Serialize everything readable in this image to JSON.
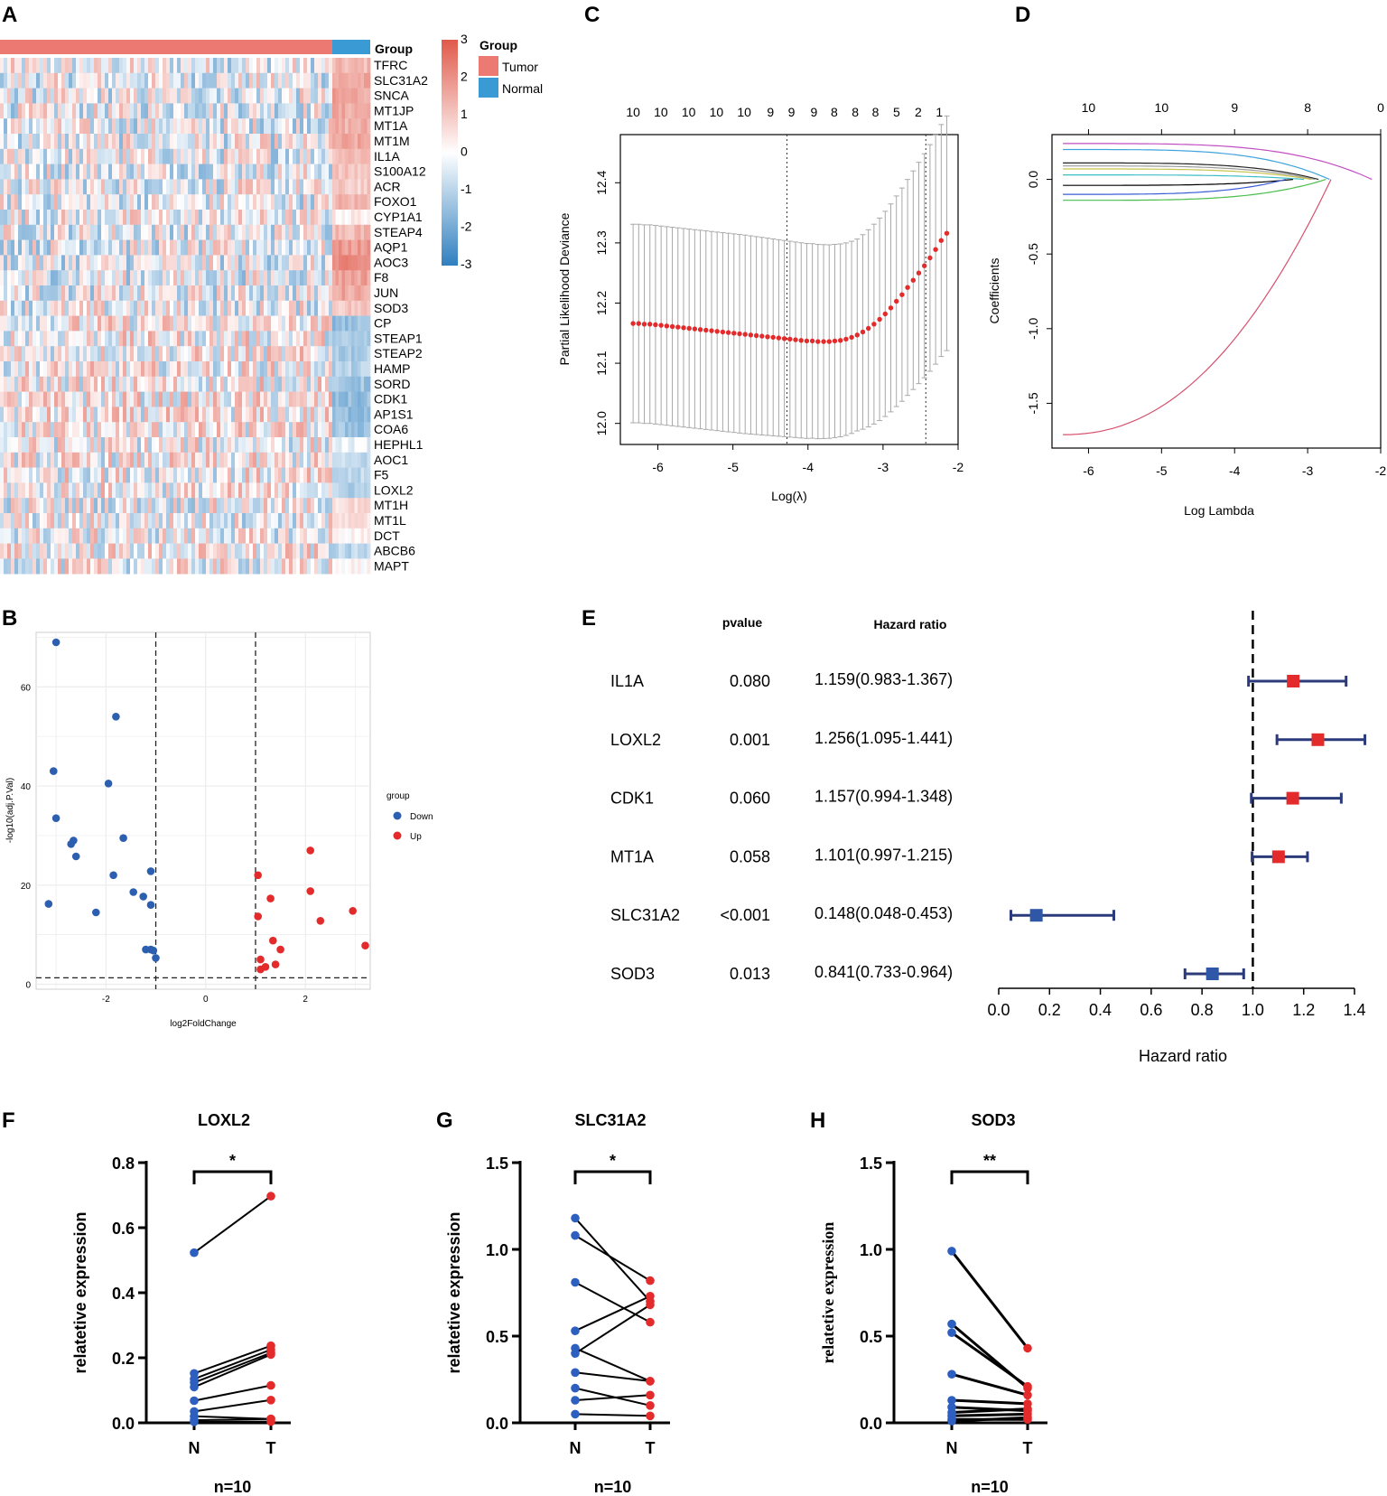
{
  "panels": {
    "A": "A",
    "B": "B",
    "C": "C",
    "D": "D",
    "E": "E",
    "F": "F",
    "G": "G",
    "H": "H"
  },
  "chart_data": [
    {
      "id": "A",
      "type": "heatmap",
      "title": "",
      "annotation_title": "Group",
      "legend_title": "Group",
      "legend": [
        "Tumor",
        "Normal"
      ],
      "colors": {
        "Tumor": "#ec7a72",
        "Normal": "#3a9ad3",
        "high": "#e0594a",
        "mid": "#ffffff",
        "low": "#2f7fbf"
      },
      "scale_ticks": [
        "3",
        "2",
        "1",
        "0",
        "-1",
        "-2",
        "-3"
      ],
      "genes": [
        "TFRC",
        "SLC31A2",
        "SNCA",
        "MT1JP",
        "MT1A",
        "MT1M",
        "IL1A",
        "S100A12",
        "ACR",
        "FOXO1",
        "CYP1A1",
        "STEAP4",
        "AQP1",
        "AOC3",
        "F8",
        "JUN",
        "SOD3",
        "CP",
        "STEAP1",
        "STEAP2",
        "HAMP",
        "SORD",
        "CDK1",
        "AP1S1",
        "COA6",
        "HEPHL1",
        "AOC1",
        "F5",
        "LOXL2",
        "MT1H",
        "MT1L",
        "DCT",
        "ABCB6",
        "MAPT"
      ],
      "normal_block_level": [
        1.2,
        1.5,
        1.6,
        1.5,
        1.4,
        1.5,
        1.3,
        1.0,
        0.9,
        1.3,
        0.3,
        1.3,
        1.8,
        2.0,
        1.7,
        1.6,
        1.0,
        -1.5,
        -1.3,
        -1.2,
        -1.1,
        -1.4,
        -1.6,
        -1.5,
        -1.4,
        -0.3,
        -0.9,
        -1.0,
        -1.1,
        0.6,
        0.5,
        0.2,
        -1.0,
        0.1
      ]
    },
    {
      "id": "B",
      "type": "scatter",
      "title": "",
      "xlabel": "log2FoldChange",
      "ylabel": "-log10(adj.P.Val)",
      "xlim": [
        -3.4,
        3.3
      ],
      "ylim": [
        -1,
        71
      ],
      "xticks": [
        "-2",
        "0",
        "2"
      ],
      "yticks": [
        "0",
        "20",
        "40",
        "60"
      ],
      "thresholds": {
        "x": [
          -1,
          1
        ],
        "y": 1.3
      },
      "legend_title": "group",
      "series": [
        {
          "name": "Down",
          "color": "#2d5fb0",
          "points": [
            [
              -3.0,
              69
            ],
            [
              -1.8,
              54
            ],
            [
              -3.05,
              43
            ],
            [
              -1.95,
              40.5
            ],
            [
              -3.0,
              33.5
            ],
            [
              -2.65,
              29
            ],
            [
              -1.65,
              29.5
            ],
            [
              -2.7,
              28.3
            ],
            [
              -2.6,
              25.8
            ],
            [
              -1.85,
              22
            ],
            [
              -1.1,
              22.8
            ],
            [
              -1.45,
              18.6
            ],
            [
              -1.25,
              17.7
            ],
            [
              -1.1,
              16
            ],
            [
              -3.15,
              16.2
            ],
            [
              -2.2,
              14.5
            ],
            [
              -1.2,
              7
            ],
            [
              -1.1,
              7
            ],
            [
              -1.05,
              6.8
            ],
            [
              -1.0,
              5.3
            ]
          ]
        },
        {
          "name": "Up",
          "color": "#e32b2b",
          "points": [
            [
              1.05,
              22
            ],
            [
              2.1,
              27
            ],
            [
              1.3,
              17.3
            ],
            [
              2.1,
              18.8
            ],
            [
              2.95,
              14.8
            ],
            [
              1.05,
              13.7
            ],
            [
              2.3,
              12.8
            ],
            [
              3.2,
              7.8
            ],
            [
              1.35,
              8.8
            ],
            [
              1.5,
              7
            ],
            [
              1.1,
              5
            ],
            [
              1.4,
              4
            ],
            [
              1.2,
              3.5
            ],
            [
              1.1,
              3
            ]
          ]
        }
      ]
    },
    {
      "id": "C",
      "type": "scatter",
      "title": "",
      "xlabel": "Log(λ)",
      "ylabel": "Partial Likelihood Deviance",
      "xlim": [
        -6.5,
        -2.0
      ],
      "ylim": [
        11.965,
        12.48
      ],
      "xticks": [
        "-6",
        "-5",
        "-4",
        "-3",
        "-2"
      ],
      "yticks": [
        "12.0",
        "12.1",
        "12.2",
        "12.3",
        "12.4"
      ],
      "top_ticks": [
        "10",
        "10",
        "10",
        "10",
        "10",
        "9",
        "9",
        "9",
        "8",
        "8",
        "8",
        "5",
        "2",
        "1"
      ],
      "top_ticks_x": [
        -6.33,
        -5.96,
        -5.59,
        -5.22,
        -4.85,
        -4.5,
        -4.22,
        -3.92,
        -3.65,
        -3.37,
        -3.1,
        -2.82,
        -2.53,
        -2.25
      ],
      "vlines": [
        -4.28,
        -2.43
      ],
      "series": [
        {
          "name": "deviance",
          "color": "#e32b2b",
          "x_start": -6.33,
          "x_end": -2.15,
          "points_note": "mean partial likelihood deviance with error bars",
          "values": [
            12.166,
            12.166,
            12.165,
            12.165,
            12.164,
            12.163,
            12.162,
            12.161,
            12.16,
            12.159,
            12.158,
            12.157,
            12.156,
            12.155,
            12.154,
            12.153,
            12.152,
            12.151,
            12.15,
            12.149,
            12.148,
            12.147,
            12.146,
            12.145,
            12.144,
            12.143,
            12.142,
            12.141,
            12.14,
            12.139,
            12.138,
            12.137,
            12.137,
            12.136,
            12.136,
            12.136,
            12.137,
            12.138,
            12.14,
            12.143,
            12.147,
            12.152,
            12.158,
            12.165,
            12.173,
            12.182,
            12.192,
            12.203,
            12.214,
            12.226,
            12.238,
            12.25,
            12.262,
            12.275,
            12.289,
            12.304,
            12.316
          ]
        }
      ]
    },
    {
      "id": "D",
      "type": "line",
      "title": "",
      "xlabel": "Log Lambda",
      "ylabel": "Coefficients",
      "xlim": [
        -6.5,
        -2.0
      ],
      "ylim": [
        -1.8,
        0.3
      ],
      "xticks": [
        "-6",
        "-5",
        "-4",
        "-3",
        "-2"
      ],
      "yticks": [
        "0.0",
        "-0.5",
        "-1.0",
        "-1.5"
      ],
      "top_ticks": [
        "10",
        "10",
        "9",
        "8",
        "0"
      ],
      "top_ticks_x": [
        -6.0,
        -5.0,
        -4.0,
        -3.0,
        -2.0
      ],
      "series": [
        {
          "name": "magenta",
          "color": "#c24fc3",
          "start": 0.24,
          "end_x": -2.12
        },
        {
          "name": "steelblue",
          "color": "#3ea3dd",
          "start": 0.2,
          "end_x": -2.7
        },
        {
          "name": "black1",
          "color": "#222222",
          "start": 0.11,
          "end_x": -2.85
        },
        {
          "name": "gray",
          "color": "#9a9a9a",
          "start": 0.09,
          "end_x": -2.9
        },
        {
          "name": "yellow",
          "color": "#c9c24a",
          "start": 0.07,
          "end_x": -2.95
        },
        {
          "name": "cyan",
          "color": "#3dbec6",
          "start": 0.03,
          "end_x": -3.05
        },
        {
          "name": "black2",
          "color": "#000000",
          "start": -0.04,
          "end_x": -3.2
        },
        {
          "name": "blue",
          "color": "#3b5ed6",
          "start": -0.1,
          "end_x": -3.3
        },
        {
          "name": "green",
          "color": "#4cbd4c",
          "start": -0.14,
          "end_x": -2.75
        },
        {
          "name": "pink",
          "color": "#d6506e",
          "start": -1.71,
          "end_x": -2.68
        }
      ]
    },
    {
      "id": "E",
      "type": "scatter",
      "title": "",
      "xlabel": "Hazard ratio",
      "col_headers": {
        "pvalue": "pvalue",
        "hr": "Hazard ratio"
      },
      "xlim": [
        0.0,
        1.4
      ],
      "xticks": [
        "0.0",
        "0.2",
        "0.4",
        "0.6",
        "0.8",
        "1.0",
        "1.2",
        "1.4"
      ],
      "ref_line": 1.0,
      "rows": [
        {
          "gene": "IL1A",
          "pvalue": "0.080",
          "hr_text": "1.159(0.983-1.367)",
          "hr": 1.159,
          "lo": 0.983,
          "hi": 1.367,
          "color": "#e32b2b"
        },
        {
          "gene": "LOXL2",
          "pvalue": "0.001",
          "hr_text": "1.256(1.095-1.441)",
          "hr": 1.256,
          "lo": 1.095,
          "hi": 1.441,
          "color": "#e32b2b"
        },
        {
          "gene": "CDK1",
          "pvalue": "0.060",
          "hr_text": "1.157(0.994-1.348)",
          "hr": 1.157,
          "lo": 0.994,
          "hi": 1.348,
          "color": "#e32b2b"
        },
        {
          "gene": "MT1A",
          "pvalue": "0.058",
          "hr_text": "1.101(0.997-1.215)",
          "hr": 1.101,
          "lo": 0.997,
          "hi": 1.215,
          "color": "#e32b2b"
        },
        {
          "gene": "SLC31A2",
          "pvalue": "<0.001",
          "hr_text": "0.148(0.048-0.453)",
          "hr": 0.148,
          "lo": 0.048,
          "hi": 0.453,
          "color": "#2f57a8"
        },
        {
          "gene": "SOD3",
          "pvalue": "0.013",
          "hr_text": "0.841(0.733-0.964)",
          "hr": 0.841,
          "lo": 0.733,
          "hi": 0.964,
          "color": "#2f57a8"
        }
      ]
    },
    {
      "id": "F",
      "type": "line",
      "title": "LOXL2",
      "ylabel": "relatetive expression",
      "categories": [
        "N",
        "T"
      ],
      "n_label": "n=10",
      "sig": "*",
      "ylim": [
        0,
        0.8
      ],
      "yticks": [
        "0.0",
        "0.2",
        "0.4",
        "0.6",
        "0.8"
      ],
      "pairs": [
        [
          0.523,
          0.697
        ],
        [
          0.152,
          0.237
        ],
        [
          0.135,
          0.225
        ],
        [
          0.124,
          0.215
        ],
        [
          0.11,
          0.21
        ],
        [
          0.068,
          0.115
        ],
        [
          0.035,
          0.07
        ],
        [
          0.02,
          0.012
        ],
        [
          0.008,
          0.012
        ],
        [
          0.003,
          0.004
        ]
      ]
    },
    {
      "id": "G",
      "type": "line",
      "title": "SLC31A2",
      "ylabel": "relatetive expression",
      "categories": [
        "N",
        "T"
      ],
      "n_label": "n=10",
      "sig": "*",
      "ylim": [
        0,
        1.5
      ],
      "yticks": [
        "0.0",
        "0.5",
        "1.0",
        "1.5"
      ],
      "pairs": [
        [
          1.18,
          0.7
        ],
        [
          1.08,
          0.82
        ],
        [
          0.81,
          0.58
        ],
        [
          0.53,
          0.73
        ],
        [
          0.43,
          0.24
        ],
        [
          0.4,
          0.68
        ],
        [
          0.29,
          0.24
        ],
        [
          0.2,
          0.1
        ],
        [
          0.13,
          0.16
        ],
        [
          0.05,
          0.04
        ]
      ]
    },
    {
      "id": "H",
      "type": "line",
      "title": "SOD3",
      "ylabel": "relatetive expression",
      "categories": [
        "N",
        "T"
      ],
      "n_label": "n=10",
      "sig": "**",
      "ylim": [
        0,
        1.5
      ],
      "yticks": [
        "0.0",
        "0.5",
        "1.0",
        "1.5"
      ],
      "pairs": [
        [
          0.99,
          0.43
        ],
        [
          0.57,
          0.2
        ],
        [
          0.52,
          0.21
        ],
        [
          0.28,
          0.16
        ],
        [
          0.13,
          0.11
        ],
        [
          0.09,
          0.07
        ],
        [
          0.06,
          0.08
        ],
        [
          0.04,
          0.05
        ],
        [
          0.02,
          0.02
        ],
        [
          0.01,
          0.03
        ]
      ]
    }
  ]
}
